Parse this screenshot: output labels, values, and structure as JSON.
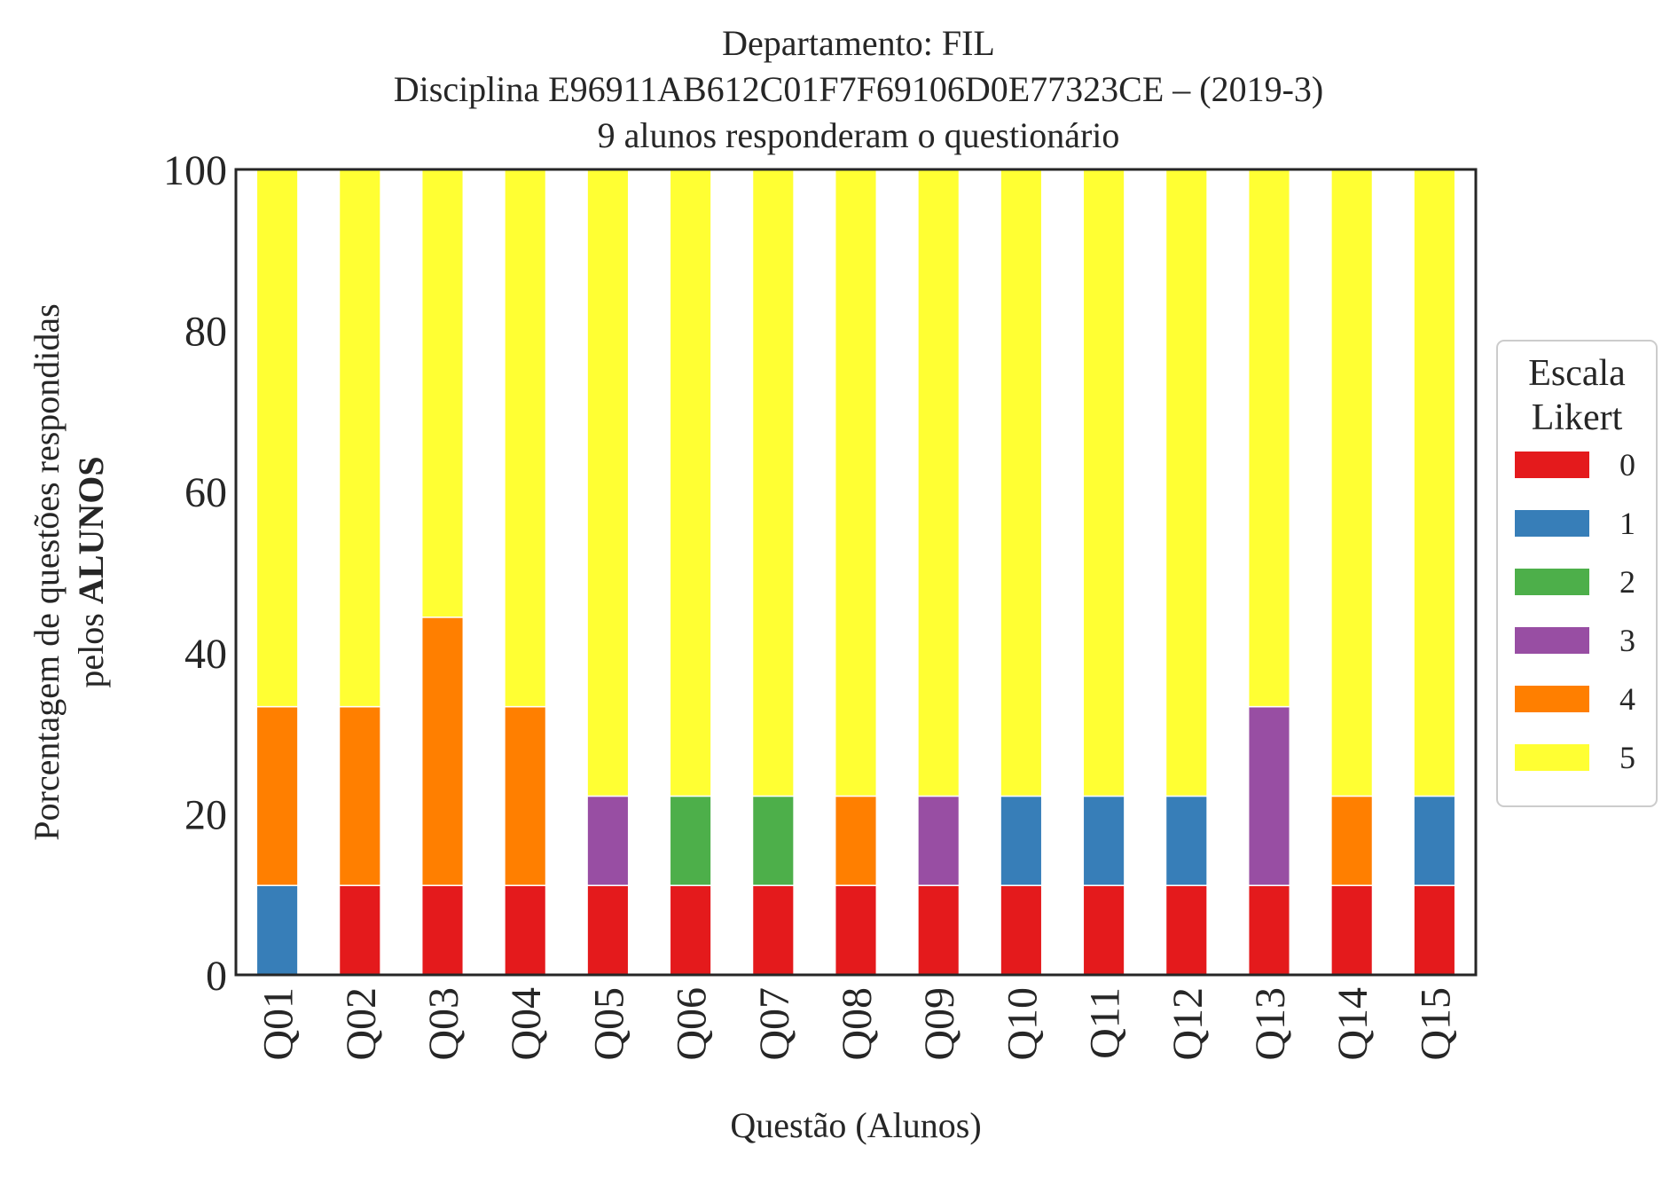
{
  "chart_data": {
    "type": "bar",
    "stacked": true,
    "title_lines": [
      "Departamento: FIL",
      "Disciplina E96911AB612C01F7F69106D0E77323CE – (2019-3)",
      "9 alunos responderam o questionário"
    ],
    "xlabel": "Questão (Alunos)",
    "ylabel_line1": "Porcentagem de questões respondidas",
    "ylabel_line2_prefix": "pelos ",
    "ylabel_line2_bold": "ALUNOS",
    "ylim": [
      0,
      100
    ],
    "yticks": [
      0,
      20,
      40,
      60,
      80,
      100
    ],
    "grid": false,
    "legend": {
      "title_line1": "Escala",
      "title_line2": "Likert",
      "placement": "center-right outside"
    },
    "categories": [
      "Q01",
      "Q02",
      "Q03",
      "Q04",
      "Q05",
      "Q06",
      "Q07",
      "Q08",
      "Q09",
      "Q10",
      "Q11",
      "Q12",
      "Q13",
      "Q14",
      "Q15"
    ],
    "series": [
      {
        "name": "0",
        "color": "#e41a1c",
        "values": [
          0,
          11.1,
          11.1,
          11.1,
          11.1,
          11.1,
          11.1,
          11.1,
          11.1,
          11.1,
          11.1,
          11.1,
          11.1,
          11.1,
          11.1
        ]
      },
      {
        "name": "1",
        "color": "#377eb8",
        "values": [
          11.1,
          0,
          0,
          0,
          0,
          0,
          0,
          0,
          0,
          11.1,
          11.1,
          11.1,
          0,
          0,
          11.1
        ]
      },
      {
        "name": "2",
        "color": "#4daf4a",
        "values": [
          0,
          0,
          0,
          0,
          0,
          11.1,
          11.1,
          0,
          0,
          0,
          0,
          0,
          0,
          0,
          0
        ]
      },
      {
        "name": "3",
        "color": "#984ea3",
        "values": [
          0,
          0,
          0,
          0,
          11.1,
          0,
          0,
          0,
          11.1,
          0,
          0,
          0,
          22.2,
          0,
          0
        ]
      },
      {
        "name": "4",
        "color": "#ff7f00",
        "values": [
          22.2,
          22.2,
          33.3,
          22.2,
          0,
          0,
          0,
          11.1,
          0,
          0,
          0,
          0,
          0,
          11.1,
          0
        ]
      },
      {
        "name": "5",
        "color": "#ffff33",
        "values": [
          66.7,
          66.7,
          55.6,
          66.7,
          77.8,
          77.8,
          77.8,
          77.8,
          77.8,
          77.8,
          77.8,
          77.8,
          66.7,
          77.8,
          77.8
        ]
      }
    ]
  }
}
